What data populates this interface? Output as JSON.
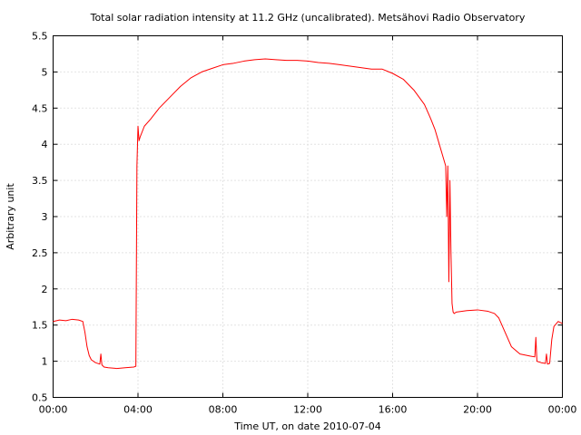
{
  "chart_data": {
    "type": "line",
    "title": "Total solar radiation intensity at 11.2 GHz (uncalibrated). Metsähovi Radio Observatory",
    "xlabel": "Time UT, on date 2010-07-04",
    "ylabel": "Arbitrary unit",
    "xlim": [
      0,
      24
    ],
    "ylim": [
      0.5,
      5.5
    ],
    "grid": true,
    "x_ticks": [
      {
        "value": 0,
        "label": "00:00"
      },
      {
        "value": 4,
        "label": "04:00"
      },
      {
        "value": 8,
        "label": "08:00"
      },
      {
        "value": 12,
        "label": "12:00"
      },
      {
        "value": 16,
        "label": "16:00"
      },
      {
        "value": 20,
        "label": "20:00"
      },
      {
        "value": 24,
        "label": "00:00"
      }
    ],
    "y_ticks": [
      {
        "value": 0.5,
        "label": "0.5"
      },
      {
        "value": 1,
        "label": "1"
      },
      {
        "value": 1.5,
        "label": "1.5"
      },
      {
        "value": 2,
        "label": "2"
      },
      {
        "value": 2.5,
        "label": "2.5"
      },
      {
        "value": 3,
        "label": "3"
      },
      {
        "value": 3.5,
        "label": "3.5"
      },
      {
        "value": 4,
        "label": "4"
      },
      {
        "value": 4.5,
        "label": "4.5"
      },
      {
        "value": 5,
        "label": "5"
      },
      {
        "value": 5.5,
        "label": "5.5"
      }
    ],
    "series": [
      {
        "color": "#ff0000",
        "x": [
          0,
          0.3,
          0.6,
          0.9,
          1.2,
          1.4,
          1.5,
          1.6,
          1.7,
          1.8,
          2.0,
          2.2,
          2.25,
          2.3,
          2.4,
          2.6,
          3.0,
          3.4,
          3.8,
          3.9,
          3.95,
          4.0,
          4.05,
          4.1,
          4.3,
          4.6,
          5.0,
          5.5,
          6.0,
          6.5,
          7.0,
          7.5,
          8.0,
          8.5,
          9.0,
          9.5,
          10.0,
          10.5,
          11.0,
          11.5,
          12.0,
          12.5,
          13.0,
          13.5,
          14.0,
          14.5,
          15.0,
          15.5,
          16.0,
          16.5,
          17.0,
          17.5,
          17.8,
          18.0,
          18.2,
          18.4,
          18.5,
          18.55,
          18.6,
          18.65,
          18.7,
          18.75,
          18.8,
          18.85,
          18.9,
          18.95,
          19.0,
          19.5,
          20.0,
          20.5,
          20.8,
          21.0,
          21.3,
          21.6,
          22.0,
          22.5,
          22.7,
          22.75,
          22.8,
          23.0,
          23.2,
          23.25,
          23.3,
          23.4,
          23.5,
          23.6,
          23.8,
          24.0
        ],
        "y": [
          1.55,
          1.57,
          1.56,
          1.58,
          1.57,
          1.55,
          1.4,
          1.2,
          1.08,
          1.02,
          0.98,
          0.96,
          1.1,
          0.95,
          0.92,
          0.91,
          0.9,
          0.91,
          0.92,
          0.93,
          3.7,
          4.25,
          4.05,
          4.1,
          4.25,
          4.35,
          4.5,
          4.65,
          4.8,
          4.92,
          5.0,
          5.05,
          5.1,
          5.12,
          5.15,
          5.17,
          5.18,
          5.17,
          5.16,
          5.16,
          5.15,
          5.13,
          5.12,
          5.1,
          5.08,
          5.06,
          5.04,
          5.04,
          4.98,
          4.9,
          4.75,
          4.55,
          4.35,
          4.2,
          4.0,
          3.8,
          3.7,
          3.0,
          3.7,
          2.1,
          3.5,
          2.5,
          1.8,
          1.68,
          1.66,
          1.67,
          1.68,
          1.7,
          1.71,
          1.69,
          1.66,
          1.6,
          1.4,
          1.2,
          1.1,
          1.07,
          1.06,
          1.33,
          1.0,
          0.98,
          0.97,
          1.1,
          0.96,
          0.97,
          1.3,
          1.48,
          1.55,
          1.52
        ]
      }
    ]
  }
}
